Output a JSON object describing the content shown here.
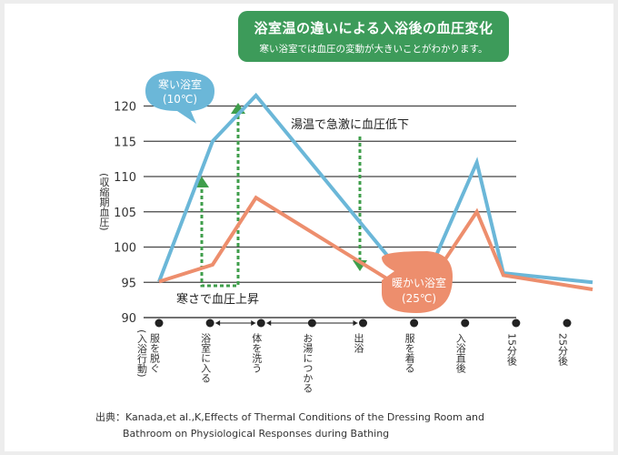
{
  "title": {
    "main": "浴室温の違いによる入浴後の血圧変化",
    "sub": "寒い浴室では血圧の変動が大きいことがわかります。"
  },
  "colors": {
    "cold": "#6bb7d8",
    "warm": "#ed8e6d",
    "arrow": "#3f9e4b",
    "grid": "#444444",
    "banner": "#3d9b5a"
  },
  "chart_data": {
    "type": "line",
    "ylabel": "(収縮期血圧)",
    "ylim": [
      90,
      122
    ],
    "yticks": [
      90,
      95,
      100,
      105,
      110,
      115,
      120
    ],
    "x": [
      0,
      1,
      2,
      3,
      4,
      5,
      6,
      7,
      8
    ],
    "x_labels": [
      {
        "text": "服を脱ぐ",
        "sub": "(入浴行動)"
      },
      {
        "text": "浴室に入る",
        "sub": ""
      },
      {
        "text": "体を洗う",
        "sub": ""
      },
      {
        "text": "お湯につかる",
        "sub": ""
      },
      {
        "text": "出浴",
        "sub": ""
      },
      {
        "text": "服を着る",
        "sub": ""
      },
      {
        "text": "入浴直後",
        "sub": ""
      },
      {
        "text": "15分後",
        "sub": ""
      },
      {
        "text": "25分後",
        "sub": ""
      }
    ],
    "series": [
      {
        "name": "寒い浴室(10℃)",
        "x": [
          0,
          1.05,
          1.9,
          5.1,
          6.23,
          6.75,
          8.5
        ],
        "values": [
          95.1,
          115,
          121.5,
          93.3,
          112,
          96.3,
          95
        ]
      },
      {
        "name": "暖かい浴室(25℃)",
        "x": [
          0,
          1.05,
          1.9,
          5.1,
          6.23,
          6.75,
          8.5
        ],
        "values": [
          95.1,
          97.5,
          107,
          92.7,
          105,
          96,
          94
        ]
      }
    ],
    "annotations": [
      {
        "text": "寒さで血圧上昇"
      },
      {
        "text": "湯温で急激に血圧低下"
      }
    ],
    "callouts": {
      "cold_line1": "寒い浴室",
      "cold_line2": "(10℃)",
      "warm_line1": "暖かい浴室",
      "warm_line2": "(25℃)"
    }
  },
  "source": {
    "line1": "出典：Kanada,et al.,K,Effects of Thermal Conditions of the Dressing Room and",
    "line2": "Bathroom on Physiological Responses during Bathing"
  }
}
